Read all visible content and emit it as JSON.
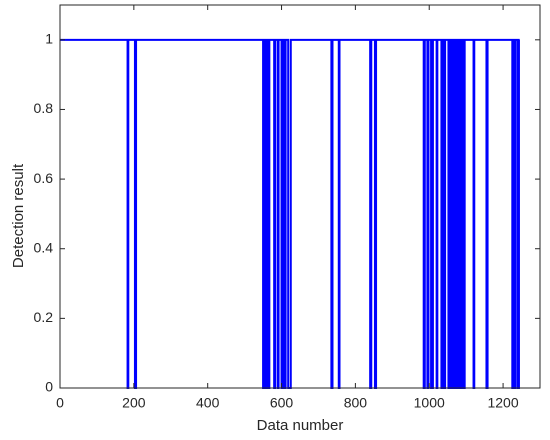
{
  "chart_data": {
    "type": "line",
    "xlabel": "Data number",
    "ylabel": "Detection result",
    "color": "#0000ff",
    "xlim": [
      0,
      1300
    ],
    "ylim": [
      0,
      1.1
    ],
    "xticks": [
      0,
      200,
      400,
      600,
      800,
      1000,
      1200
    ],
    "yticks": [
      0,
      0.2,
      0.4,
      0.6,
      0.8,
      1
    ],
    "x": [
      0,
      183,
      183,
      185,
      185,
      203,
      203,
      206,
      206,
      550,
      550,
      552,
      552,
      555,
      555,
      557,
      557,
      560,
      560,
      562,
      562,
      565,
      565,
      567,
      567,
      580,
      580,
      583,
      583,
      590,
      590,
      592,
      592,
      600,
      600,
      603,
      603,
      608,
      608,
      611,
      611,
      618,
      618,
      625,
      625,
      735,
      735,
      738,
      738,
      755,
      755,
      757,
      757,
      840,
      840,
      843,
      843,
      853,
      853,
      856,
      856,
      985,
      985,
      988,
      988,
      995,
      995,
      998,
      998,
      1005,
      1005,
      1010,
      1010,
      1020,
      1020,
      1022,
      1022,
      1033,
      1033,
      1037,
      1037,
      1040,
      1040,
      1043,
      1043,
      1052,
      1052,
      1055,
      1055,
      1060,
      1060,
      1062,
      1062,
      1065,
      1065,
      1068,
      1068,
      1072,
      1072,
      1074,
      1074,
      1078,
      1078,
      1080,
      1080,
      1085,
      1085,
      1088,
      1088,
      1093,
      1093,
      1096,
      1096,
      1120,
      1120,
      1122,
      1122,
      1155,
      1155,
      1158,
      1158,
      1225,
      1225,
      1228,
      1228,
      1232,
      1232,
      1234,
      1234,
      1240,
      1240,
      1243,
      1243,
      1245
    ],
    "values": [
      1,
      1,
      0,
      0,
      1,
      1,
      0,
      0,
      1,
      1,
      0,
      0,
      1,
      1,
      0,
      0,
      1,
      1,
      0,
      0,
      1,
      1,
      0,
      0,
      1,
      1,
      0,
      0,
      1,
      1,
      0,
      0,
      1,
      1,
      0,
      0,
      1,
      1,
      0,
      0,
      1,
      1,
      0,
      0,
      1,
      1,
      0,
      0,
      1,
      1,
      0,
      0,
      1,
      1,
      0,
      0,
      1,
      1,
      0,
      0,
      1,
      1,
      0,
      0,
      1,
      1,
      0,
      0,
      1,
      1,
      0,
      0,
      1,
      1,
      0,
      0,
      1,
      1,
      0,
      0,
      1,
      1,
      0,
      0,
      1,
      1,
      0,
      0,
      1,
      1,
      0,
      0,
      1,
      1,
      0,
      0,
      1,
      1,
      0,
      0,
      1,
      1,
      0,
      0,
      1,
      1,
      0,
      0,
      1,
      1,
      0,
      0,
      1,
      1,
      0,
      0,
      1,
      1,
      0,
      0,
      1,
      1,
      0,
      0,
      1,
      1,
      0,
      0,
      1,
      1,
      0,
      0,
      1,
      1
    ]
  }
}
